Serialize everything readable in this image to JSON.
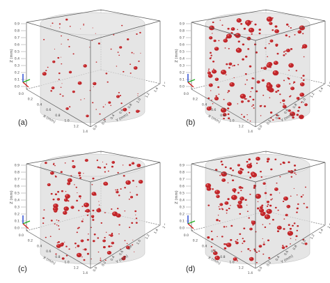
{
  "figure": {
    "panels": [
      {
        "id": "a",
        "label": "(a)",
        "density": 0.55,
        "size_scale": 0.8
      },
      {
        "id": "b",
        "label": "(b)",
        "density": 1.3,
        "size_scale": 1.15
      },
      {
        "id": "c",
        "label": "(c)",
        "density": 1.15,
        "size_scale": 1.0
      },
      {
        "id": "d",
        "label": "(d)",
        "density": 1.3,
        "size_scale": 1.1
      }
    ],
    "axes": {
      "z_label": "Z (mm)",
      "x_label": "X (mm)",
      "y_label": "Y (mm)",
      "z_ticks": [
        "0.0",
        "0.1",
        "0.2",
        "0.3",
        "0.4",
        "0.5",
        "0.6",
        "0.7",
        "0.8",
        "0.9"
      ],
      "x_ticks": [
        "0.0",
        "0.2",
        "0.4",
        "0.6",
        "0.8",
        "1.0",
        "1.2",
        "1.4"
      ],
      "y_ticks": [
        "0.0",
        "0.2",
        "0.4",
        "0.6",
        "0.8",
        "1.0",
        "1.2",
        "1.4",
        "1.6"
      ],
      "y_ticks_d": [
        "0.0",
        "0.2",
        "0.4",
        "0.6",
        "0.8",
        "1.0",
        "1.2",
        "1.4",
        "1.6"
      ]
    },
    "colors": {
      "pore": "#c0262a",
      "pore_highlight": "#e56060",
      "cylinder": "#dcdcdc",
      "box": "#555555",
      "triad_x": "#d02020",
      "triad_y": "#20b020",
      "triad_z": "#2040d0"
    }
  }
}
